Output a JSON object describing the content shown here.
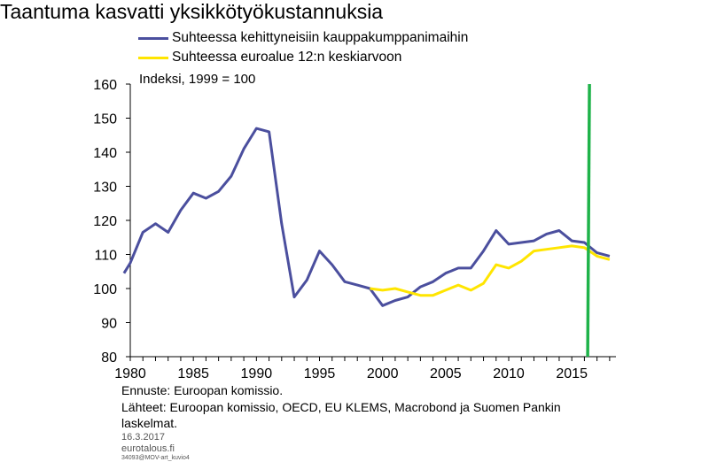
{
  "chart_data": {
    "type": "line",
    "title": "Taantuma kasvatti yksikkötyökustannuksia",
    "ylabel": "Indeksi, 1999 = 100",
    "xlabel": "",
    "xlim": [
      1980,
      2018.5
    ],
    "ylim": [
      80,
      160
    ],
    "x_ticks": [
      1980,
      1985,
      1990,
      1995,
      2000,
      2005,
      2010,
      2015
    ],
    "y_ticks": [
      80,
      90,
      100,
      110,
      120,
      130,
      140,
      150,
      160
    ],
    "vline_x": 2016.4,
    "vline_color": "#1fb34a",
    "series": [
      {
        "name": "Suhteessa kehittyneisiin kauppakumppanimaihin",
        "color": "#4b4f9e",
        "x": [
          1979.5,
          1980,
          1981,
          1982,
          1983,
          1984,
          1985,
          1986,
          1987,
          1988,
          1989,
          1990,
          1991,
          1992,
          1993,
          1994,
          1995,
          1996,
          1997,
          1998,
          1999,
          2000,
          2001,
          2002,
          2003,
          2004,
          2005,
          2006,
          2007,
          2008,
          2009,
          2010,
          2011,
          2012,
          2013,
          2014,
          2015,
          2016,
          2017,
          2018
        ],
        "values": [
          104.5,
          107.5,
          116.5,
          119,
          116.5,
          123,
          128,
          126.5,
          128.5,
          133,
          141,
          147,
          146,
          119,
          97.5,
          102.5,
          111,
          107,
          102,
          101,
          100,
          95,
          96.5,
          97.5,
          100.5,
          102,
          104.5,
          106,
          106,
          111,
          117,
          113,
          113.5,
          114,
          116,
          117,
          114,
          113.5,
          110.5,
          109.5
        ]
      },
      {
        "name": "Suhteessa euroalue 12:n keskiarvoon",
        "color": "#ffe500",
        "x": [
          1999,
          2000,
          2001,
          2002,
          2003,
          2004,
          2005,
          2006,
          2007,
          2008,
          2009,
          2010,
          2011,
          2012,
          2013,
          2014,
          2015,
          2016,
          2017,
          2018
        ],
        "values": [
          100,
          99.5,
          100,
          99,
          98,
          98,
          99.5,
          101,
          99.5,
          101.5,
          107,
          106,
          108,
          111,
          111.5,
          112,
          112.5,
          112,
          109.5,
          108.5
        ]
      }
    ],
    "grid": false,
    "legend": "top-left"
  },
  "notes": {
    "forecast": "Ennuste: Euroopan komissio.",
    "sources_line1": "Lähteet: Euroopan komissio, OECD, EU KLEMS, Macrobond ja Suomen Pankin",
    "sources_line2": "laskelmat.",
    "date": "16.3.2017",
    "site": "eurotalous.fi",
    "code": "34093@MOV-art_kuvio4"
  }
}
